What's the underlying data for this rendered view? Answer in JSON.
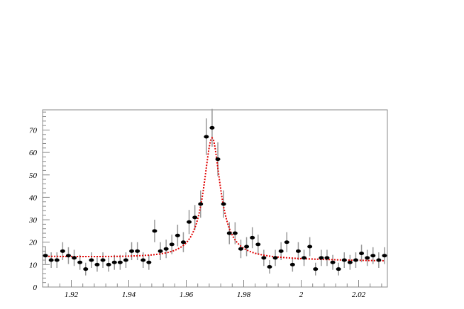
{
  "chart_data": {
    "type": "scatter",
    "title": "",
    "xlabel": "",
    "ylabel": "",
    "xlim": [
      1.91,
      2.03
    ],
    "ylim": [
      0,
      79
    ],
    "grid": false,
    "x_ticks": [
      1.92,
      1.94,
      1.96,
      1.98,
      2,
      2.02
    ],
    "x_tick_labels": [
      "1.92",
      "1.94",
      "1.96",
      "1.98",
      "2",
      "2.02"
    ],
    "y_ticks": [
      0,
      10,
      20,
      30,
      40,
      50,
      60,
      70
    ],
    "y_tick_labels": [
      "0",
      "10",
      "20",
      "30",
      "40",
      "50",
      "60",
      "70"
    ],
    "bin_width": 0.002,
    "error_bars": "sqrt(N)",
    "values": [
      14,
      12,
      12,
      16,
      14,
      13,
      11,
      8,
      12,
      10,
      12,
      10,
      11,
      11,
      12,
      16,
      16,
      12,
      11,
      25,
      16,
      17,
      19,
      23,
      20,
      29,
      31,
      37,
      67,
      71,
      57,
      37,
      24,
      24,
      17,
      18,
      22,
      19,
      13,
      9,
      13,
      16,
      20,
      10,
      16,
      13,
      18,
      8,
      13,
      13,
      11,
      8,
      12,
      11,
      12,
      15,
      13,
      14,
      12,
      14
    ],
    "fit_color": "#e00000",
    "marker_color": "#000000",
    "error_color": "#999999"
  }
}
